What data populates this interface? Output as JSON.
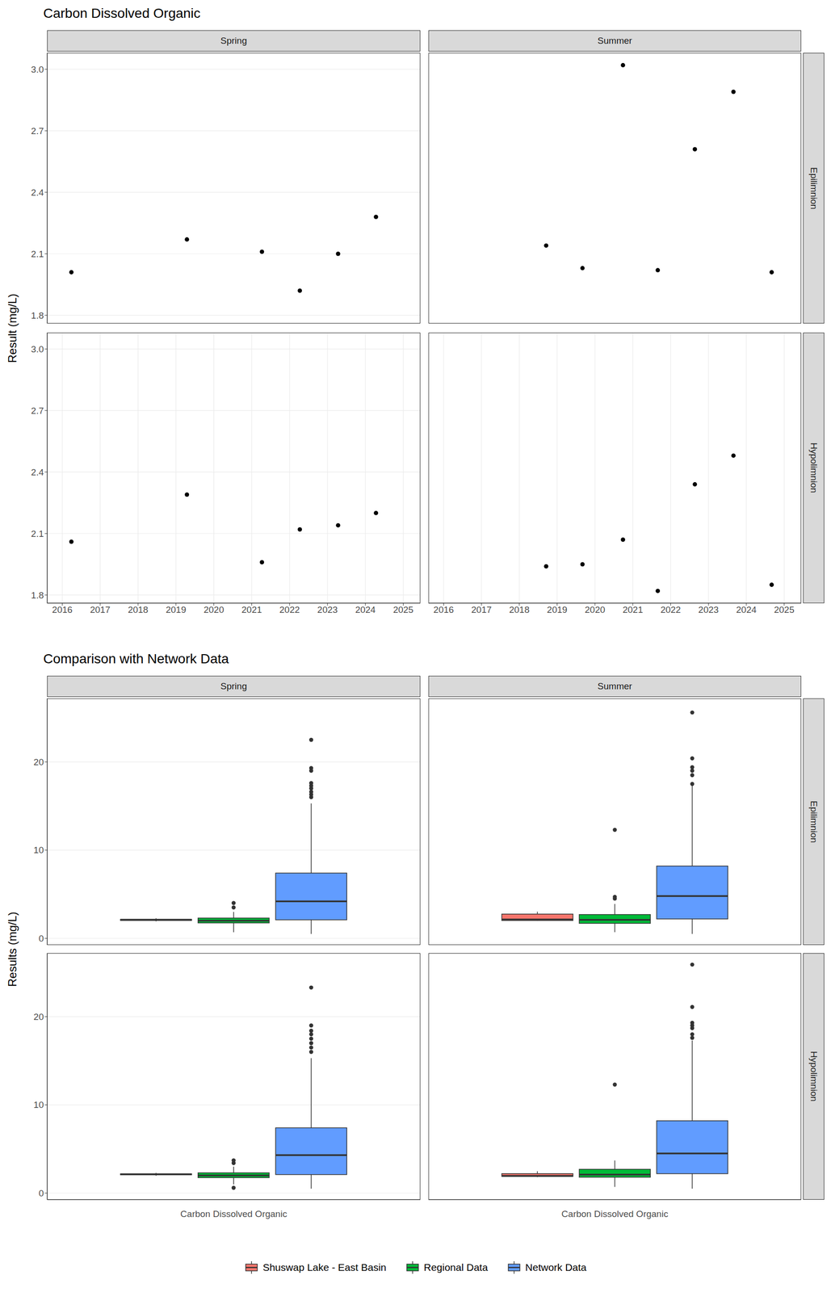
{
  "chart_data": [
    {
      "type": "scatter",
      "title": "Carbon Dissolved Organic",
      "y_label": "Result (mg/L)",
      "columns": [
        "Spring",
        "Summer"
      ],
      "rows": [
        "Epilimnion",
        "Hypolimnion"
      ],
      "xlim": [
        2015.6,
        2025.45
      ],
      "xticks": [
        2016,
        2017,
        2018,
        2019,
        2020,
        2021,
        2022,
        2023,
        2024,
        2025
      ],
      "ylim": [
        1.76,
        3.08
      ],
      "yticks": [
        1.8,
        2.1,
        2.4,
        2.7,
        {
          "value": 3,
          "label": "3.0"
        }
      ],
      "grid": true,
      "color": "#000000",
      "marker": "circle",
      "facets": [
        {
          "column": "Spring",
          "row": "Epilimnion",
          "x": [
            2016.24,
            2019.29,
            2021.27,
            2022.27,
            2023.28,
            2024.28
          ],
          "values": [
            2.01,
            2.17,
            2.11,
            1.92,
            2.1,
            2.28
          ]
        },
        {
          "column": "Summer",
          "row": "Epilimnion",
          "x": [
            2018.71,
            2019.67,
            2020.74,
            2021.66,
            2022.64,
            2023.66,
            2024.67
          ],
          "values": [
            2.14,
            2.03,
            3.02,
            2.02,
            2.61,
            2.89,
            2.01
          ]
        },
        {
          "column": "Spring",
          "row": "Hypolimnion",
          "x": [
            2016.24,
            2019.29,
            2021.27,
            2022.27,
            2023.28,
            2024.28
          ],
          "values": [
            2.06,
            2.29,
            1.96,
            2.12,
            2.14,
            2.2
          ]
        },
        {
          "column": "Summer",
          "row": "Hypolimnion",
          "x": [
            2018.71,
            2019.67,
            2020.74,
            2021.66,
            2022.64,
            2023.66,
            2024.67
          ],
          "values": [
            1.94,
            1.95,
            2.07,
            1.82,
            2.34,
            2.48,
            1.85
          ]
        }
      ]
    },
    {
      "type": "box",
      "title": "Comparison with Network Data",
      "y_label": "Results (mg/L)",
      "categories": [
        "Carbon Dissolved Organic"
      ],
      "columns": [
        "Spring",
        "Summer"
      ],
      "rows": [
        "Epilimnion",
        "Hypolimnion"
      ],
      "ylim": [
        -0.75,
        27.2
      ],
      "yticks": [
        0,
        10,
        20
      ],
      "grid": true,
      "legend": "bottom",
      "series": [
        {
          "name": "Shuswap Lake - East Basin",
          "color": "#F8766D"
        },
        {
          "name": "Regional Data",
          "color": "#00BA38"
        },
        {
          "name": "Network Data",
          "color": "#619CFF"
        }
      ],
      "facets": [
        {
          "column": "Spring",
          "row": "Epilimnion",
          "boxes": [
            {
              "name": "Shuswap Lake - East Basin",
              "whisker_low": 1.92,
              "q1": 2.03,
              "median": 2.105,
              "q3": 2.155,
              "whisker_high": 2.28,
              "outliers": []
            },
            {
              "name": "Regional Data",
              "whisker_low": 0.7,
              "q1": 1.75,
              "median": 2.0,
              "q3": 2.3,
              "whisker_high": 3.0,
              "outliers": [
                3.5,
                4.0
              ]
            },
            {
              "name": "Network Data",
              "whisker_low": 0.5,
              "q1": 2.1,
              "median": 4.2,
              "q3": 7.4,
              "whisker_high": 15.3,
              "outliers": [
                16.0,
                16.3,
                16.6,
                17.0,
                17.3,
                17.6,
                19.0,
                19.3,
                22.5
              ]
            }
          ]
        },
        {
          "column": "Summer",
          "row": "Epilimnion",
          "boxes": [
            {
              "name": "Shuswap Lake - East Basin",
              "whisker_low": 2.01,
              "q1": 2.025,
              "median": 2.14,
              "q3": 2.75,
              "whisker_high": 3.02,
              "outliers": []
            },
            {
              "name": "Regional Data",
              "whisker_low": 0.7,
              "q1": 1.7,
              "median": 2.1,
              "q3": 2.7,
              "whisker_high": 3.9,
              "outliers": [
                4.5,
                4.7,
                12.3
              ]
            },
            {
              "name": "Network Data",
              "whisker_low": 0.5,
              "q1": 2.2,
              "median": 4.8,
              "q3": 8.2,
              "whisker_high": 17.3,
              "outliers": [
                17.5,
                18.5,
                19.0,
                19.4,
                20.4,
                25.6
              ]
            }
          ]
        },
        {
          "column": "Spring",
          "row": "Hypolimnion",
          "boxes": [
            {
              "name": "Shuswap Lake - East Basin",
              "whisker_low": 1.96,
              "q1": 2.075,
              "median": 2.13,
              "q3": 2.185,
              "whisker_high": 2.29,
              "outliers": []
            },
            {
              "name": "Regional Data",
              "whisker_low": 1.0,
              "q1": 1.75,
              "median": 2.0,
              "q3": 2.3,
              "whisker_high": 3.0,
              "outliers": [
                0.6,
                3.4,
                3.7
              ]
            },
            {
              "name": "Network Data",
              "whisker_low": 0.5,
              "q1": 2.1,
              "median": 4.3,
              "q3": 7.4,
              "whisker_high": 15.3,
              "outliers": [
                16.0,
                16.5,
                17.0,
                17.5,
                18.0,
                18.4,
                19.0,
                23.3
              ]
            }
          ]
        },
        {
          "column": "Summer",
          "row": "Hypolimnion",
          "boxes": [
            {
              "name": "Shuswap Lake - East Basin",
              "whisker_low": 1.82,
              "q1": 1.895,
              "median": 1.95,
              "q3": 2.205,
              "whisker_high": 2.48,
              "outliers": []
            },
            {
              "name": "Regional Data",
              "whisker_low": 0.7,
              "q1": 1.8,
              "median": 2.1,
              "q3": 2.7,
              "whisker_high": 3.7,
              "outliers": [
                12.3
              ]
            },
            {
              "name": "Network Data",
              "whisker_low": 0.5,
              "q1": 2.2,
              "median": 4.5,
              "q3": 8.2,
              "whisker_high": 17.3,
              "outliers": [
                17.6,
                18.0,
                18.7,
                19.0,
                19.3,
                21.1,
                25.9
              ]
            }
          ]
        }
      ]
    }
  ]
}
